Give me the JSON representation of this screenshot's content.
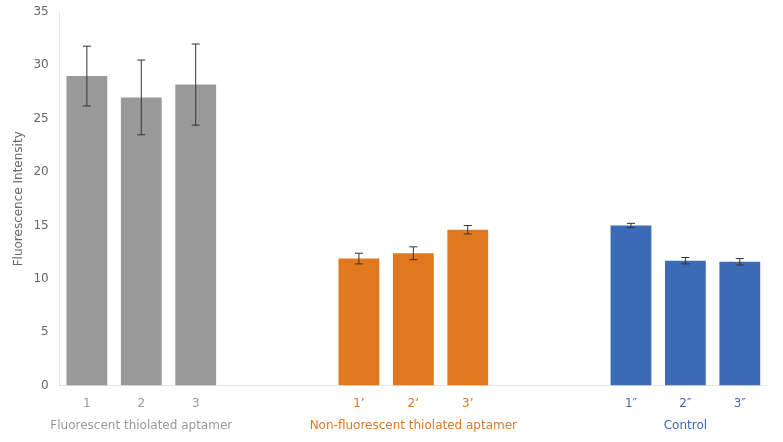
{
  "chart_data": {
    "type": "bar",
    "groups": [
      {
        "label": "Fluorescent thiolated aptamer",
        "color": "#999999",
        "categories": [
          "1",
          "2",
          "3"
        ],
        "values": [
          29.0,
          27.0,
          28.2
        ],
        "errors": [
          2.8,
          3.5,
          3.8
        ]
      },
      {
        "label": "Non-fluorescent thiolated aptamer",
        "color": "#E07820",
        "categories": [
          "1’",
          "2’",
          "3’"
        ],
        "values": [
          11.9,
          12.4,
          14.6
        ],
        "errors": [
          0.5,
          0.6,
          0.4
        ]
      },
      {
        "label": "Control",
        "color": "#3B6BB5",
        "categories": [
          "1″",
          "2″",
          "3″"
        ],
        "values": [
          15.0,
          11.7,
          11.6
        ],
        "errors": [
          0.2,
          0.3,
          0.3
        ]
      }
    ],
    "ylabel": "Fluorescence Intensity",
    "ylim": [
      0,
      35
    ],
    "yticks": [
      0,
      5,
      10,
      15,
      20,
      25,
      30,
      35
    ],
    "grid": false
  }
}
